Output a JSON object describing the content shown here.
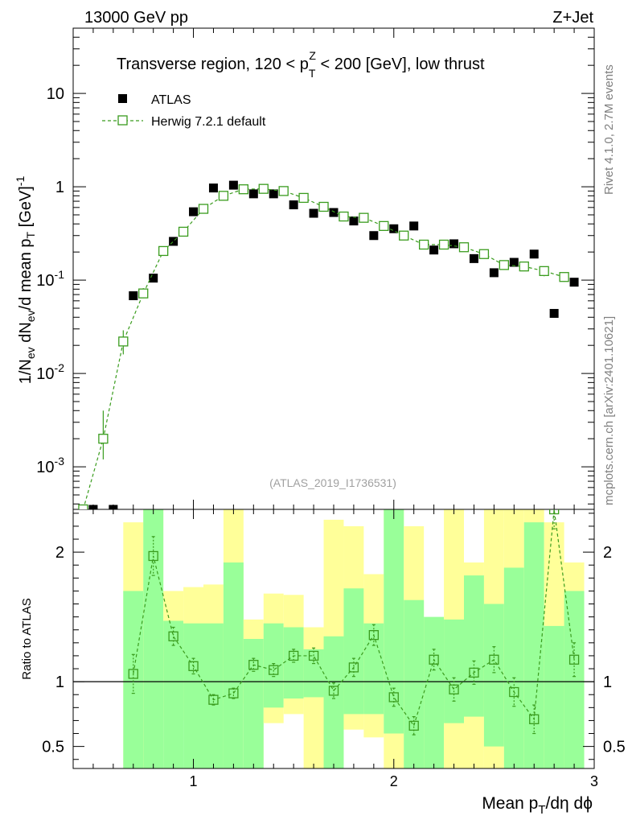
{
  "header": {
    "left": "13000 GeV pp",
    "right": "Z+Jet"
  },
  "side_labels": {
    "rivet": "Rivet 4.1.0,  2.7M events",
    "mcplots": "mcplots.cern.ch [arXiv:2401.10621]"
  },
  "colors": {
    "data": "#000000",
    "mc": "#3a9c1e",
    "band_inner": "#99ff99",
    "band_outer": "#ffff99"
  },
  "chart_data": [
    {
      "type": "scatter",
      "panel": "main",
      "title": "Transverse region, 120 < p_T^Z < 200 [GeV], low thrust",
      "ylabel": "1/N_ev dN_ev/d mean p_T [GeV]^-1",
      "yscale": "log",
      "ylim": [
        0.00035,
        50
      ],
      "xlim": [
        0.4,
        3.0
      ],
      "yticks": [
        {
          "value": 10,
          "label": "10"
        },
        {
          "value": 1,
          "label": "1"
        },
        {
          "value": 0.1,
          "label": "10^-1"
        },
        {
          "value": 0.01,
          "label": "10^-2"
        },
        {
          "value": 0.001,
          "label": "10^-3"
        }
      ],
      "watermark": "(ATLAS_2019_I1736531)",
      "legend": [
        {
          "name": "ATLAS",
          "marker": "filled-square"
        },
        {
          "name": "Herwig 7.2.1 default",
          "marker": "open-square-dashed"
        }
      ],
      "series": [
        {
          "name": "ATLAS",
          "x": [
            0.5,
            0.6,
            0.7,
            0.8,
            0.9,
            1.0,
            1.1,
            1.2,
            1.3,
            1.4,
            1.5,
            1.6,
            1.7,
            1.8,
            1.9,
            2.0,
            2.1,
            2.2,
            2.3,
            2.4,
            2.5,
            2.6,
            2.7,
            2.8,
            2.9
          ],
          "y": [
            0.00035,
            0.00035,
            0.068,
            0.105,
            0.26,
            0.54,
            0.97,
            1.04,
            0.84,
            0.84,
            0.64,
            0.52,
            0.53,
            0.43,
            0.3,
            0.355,
            0.38,
            0.21,
            0.245,
            0.17,
            0.12,
            0.155,
            0.19,
            0.044,
            0.095
          ]
        },
        {
          "name": "Herwig 7.2.1 default",
          "x": [
            0.45,
            0.55,
            0.65,
            0.75,
            0.85,
            0.95,
            1.05,
            1.15,
            1.25,
            1.35,
            1.45,
            1.55,
            1.65,
            1.75,
            1.85,
            1.95,
            2.05,
            2.15,
            2.25,
            2.35,
            2.45,
            2.55,
            2.65,
            2.75,
            2.85
          ],
          "y": [
            0.00035,
            0.002,
            0.022,
            0.072,
            0.205,
            0.33,
            0.58,
            0.8,
            0.94,
            0.95,
            0.9,
            0.76,
            0.61,
            0.48,
            0.465,
            0.38,
            0.3,
            0.24,
            0.24,
            0.225,
            0.19,
            0.145,
            0.14,
            0.125,
            0.108
          ],
          "err_lo": [
            0,
            0.0008,
            0.006,
            0.008,
            0.012,
            0.02,
            0.02,
            0.02,
            0.02,
            0.02,
            0.02,
            0.02,
            0.02,
            0.02,
            0.02,
            0.02,
            0.02,
            0.02,
            0.02,
            0.02,
            0.02,
            0.015,
            0.015,
            0.015,
            0.012
          ],
          "err_hi": [
            0,
            0.002,
            0.007,
            0.01,
            0.015,
            0.02,
            0.02,
            0.02,
            0.02,
            0.02,
            0.02,
            0.02,
            0.02,
            0.02,
            0.02,
            0.02,
            0.02,
            0.02,
            0.02,
            0.02,
            0.02,
            0.015,
            0.015,
            0.015,
            0.012
          ]
        }
      ]
    },
    {
      "type": "line",
      "panel": "ratio",
      "ylabel": "Ratio to ATLAS",
      "xlabel": "Mean p_T/dη dϕ",
      "ylim": [
        0.33,
        2.33
      ],
      "xlim": [
        0.4,
        3.0
      ],
      "xticks": [
        {
          "value": 1,
          "label": "1"
        },
        {
          "value": 2,
          "label": "2"
        },
        {
          "value": 3,
          "label": "3"
        }
      ],
      "yticks": [
        {
          "value": 0.5,
          "label": "0.5"
        },
        {
          "value": 1,
          "label": "1"
        },
        {
          "value": 2,
          "label": "2"
        }
      ],
      "reference_line": 1,
      "bands": {
        "bin_edges": [
          0.65,
          0.75,
          0.85,
          0.95,
          1.05,
          1.15,
          1.25,
          1.35,
          1.45,
          1.55,
          1.65,
          1.75,
          1.85,
          1.95,
          2.05,
          2.15,
          2.25,
          2.35,
          2.45,
          2.55,
          2.65,
          2.75,
          2.85,
          2.95
        ],
        "inner_lo": [
          0.33,
          0.33,
          0.33,
          0.33,
          0.33,
          0.33,
          0.33,
          0.8,
          0.87,
          0.88,
          0.33,
          0.75,
          0.75,
          0.6,
          0.33,
          0.33,
          0.68,
          0.73,
          0.5,
          0.33,
          0.33,
          0.33,
          0.33
        ],
        "inner_hi": [
          1.7,
          2.33,
          1.47,
          1.45,
          1.45,
          1.92,
          1.33,
          1.45,
          1.42,
          1.25,
          1.35,
          1.72,
          1.45,
          2.33,
          1.63,
          1.5,
          1.48,
          1.82,
          1.6,
          1.88,
          2.23,
          1.43,
          1.7
        ],
        "outer_lo": [
          0.33,
          0.33,
          0.73,
          0.7,
          0.33,
          0.83,
          0.33,
          0.68,
          0.75,
          0.33,
          0.33,
          0.63,
          0.57,
          0.33,
          0.33,
          0.33,
          0.33,
          0.33,
          0.33,
          0.33,
          0.33,
          0.33,
          0.33
        ],
        "outer_hi": [
          2.23,
          2.33,
          1.7,
          1.73,
          1.75,
          2.33,
          1.48,
          1.68,
          1.67,
          1.42,
          2.25,
          2.2,
          1.83,
          2.33,
          2.2,
          1.48,
          2.33,
          1.92,
          2.33,
          2.33,
          2.33,
          2.23,
          1.92
        ]
      },
      "series": [
        {
          "name": "Herwig 7.2.1 default",
          "x": [
            0.7,
            0.8,
            0.9,
            1.0,
            1.1,
            1.2,
            1.3,
            1.4,
            1.5,
            1.6,
            1.7,
            1.8,
            1.9,
            2.0,
            2.1,
            2.2,
            2.3,
            2.4,
            2.5,
            2.6,
            2.7,
            2.8,
            2.9
          ],
          "y": [
            1.06,
            1.97,
            1.35,
            1.12,
            0.86,
            0.91,
            1.13,
            1.09,
            1.2,
            1.2,
            0.93,
            1.11,
            1.36,
            0.88,
            0.66,
            1.17,
            0.94,
            1.07,
            1.17,
            0.92,
            0.71,
            2.33,
            1.17
          ],
          "err": [
            0.15,
            0.15,
            0.07,
            0.06,
            0.04,
            0.04,
            0.05,
            0.05,
            0.05,
            0.06,
            0.06,
            0.07,
            0.08,
            0.07,
            0.07,
            0.08,
            0.09,
            0.09,
            0.1,
            0.11,
            0.11,
            0.15,
            0.13
          ]
        }
      ]
    }
  ]
}
